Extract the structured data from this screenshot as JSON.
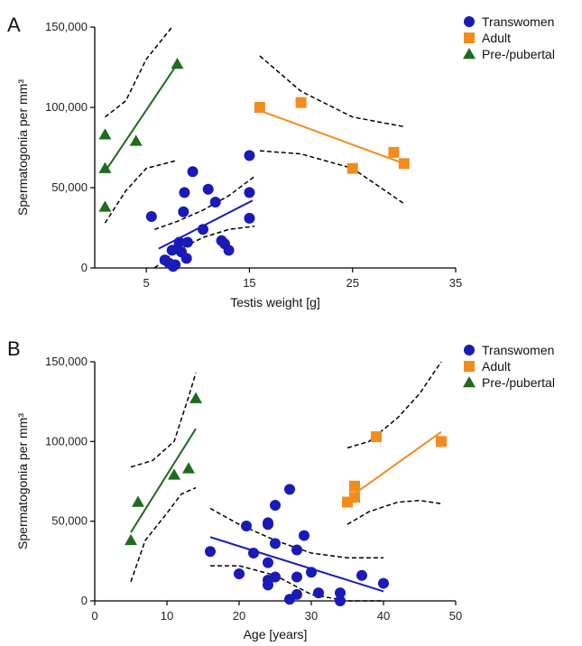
{
  "colors": {
    "transwomen": "#1a1ab8",
    "adult": "#f28c1e",
    "prepubertal": "#1f6b1f",
    "axis": "#000000",
    "ci": "#000000"
  },
  "chart_data": [
    {
      "type": "scatter",
      "panel_label": "A",
      "xlabel": "Testis weight [g]",
      "ylabel": "Spermatogonia per mm³",
      "xlim": [
        0,
        35
      ],
      "ylim": [
        0,
        150000
      ],
      "xticks": [
        5,
        15,
        25,
        35
      ],
      "yticks": [
        0,
        50000,
        100000,
        150000
      ],
      "ytick_labels": [
        "0",
        "50,000",
        "100,000",
        "150,000"
      ],
      "legend_position": "top-right",
      "series": [
        {
          "name": "Transwomen",
          "key": "transwomen",
          "marker": "circle",
          "points": [
            [
              5.5,
              32000
            ],
            [
              6.8,
              5000
            ],
            [
              7.2,
              3000
            ],
            [
              7.5,
              11000
            ],
            [
              7.6,
              1000
            ],
            [
              7.8,
              2000
            ],
            [
              8,
              12000
            ],
            [
              8.2,
              16000
            ],
            [
              8.4,
              10000
            ],
            [
              8.6,
              35000
            ],
            [
              8.7,
              47000
            ],
            [
              8.9,
              6000
            ],
            [
              9,
              16000
            ],
            [
              9.5,
              60000
            ],
            [
              10.5,
              24000
            ],
            [
              11,
              49000
            ],
            [
              11.7,
              41000
            ],
            [
              12.3,
              17000
            ],
            [
              12.6,
              15000
            ],
            [
              13,
              11000
            ],
            [
              15,
              70000
            ],
            [
              15,
              47000
            ],
            [
              15,
              31000
            ]
          ],
          "fit": [
            [
              6.2,
              12000
            ],
            [
              15.3,
              42000
            ]
          ],
          "ci_upper": [
            [
              5.8,
              24000
            ],
            [
              8,
              29000
            ],
            [
              10.5,
              36000
            ],
            [
              13,
              45000
            ],
            [
              15.5,
              57000
            ]
          ],
          "ci_lower": [
            [
              5.8,
              -2000
            ],
            [
              8,
              11000
            ],
            [
              10.5,
              19000
            ],
            [
              13,
              24000
            ],
            [
              15.5,
              26000
            ]
          ]
        },
        {
          "name": "Adult",
          "key": "adult",
          "marker": "square",
          "points": [
            [
              16,
              100000
            ],
            [
              20,
              103000
            ],
            [
              25,
              62000
            ],
            [
              29,
              72000
            ],
            [
              30,
              65000
            ]
          ],
          "fit": [
            [
              16,
              98000
            ],
            [
              30,
              65000
            ]
          ],
          "ci_upper": [
            [
              16,
              132000
            ],
            [
              20,
              110000
            ],
            [
              25,
              94000
            ],
            [
              30,
              88000
            ]
          ],
          "ci_lower": [
            [
              16,
              73000
            ],
            [
              20,
              71000
            ],
            [
              25,
              62000
            ],
            [
              30,
              40000
            ]
          ]
        },
        {
          "name": "Pre-/pubertal",
          "key": "prepubertal",
          "marker": "triangle",
          "points": [
            [
              1,
              83000
            ],
            [
              1,
              62000
            ],
            [
              1,
              38000
            ],
            [
              4,
              79000
            ],
            [
              8,
              127000
            ]
          ],
          "fit": [
            [
              1,
              60000
            ],
            [
              8,
              127000
            ]
          ],
          "ci_upper": [
            [
              1,
              94000
            ],
            [
              3,
              104000
            ],
            [
              5,
              130000
            ],
            [
              7.5,
              150000
            ]
          ],
          "ci_lower": [
            [
              1,
              28000
            ],
            [
              3,
              48000
            ],
            [
              5,
              62000
            ],
            [
              8,
              67000
            ]
          ]
        }
      ]
    },
    {
      "type": "scatter",
      "panel_label": "B",
      "xlabel": "Age [years]",
      "ylabel": "Spermatogonia per mm³",
      "xlim": [
        0,
        50
      ],
      "ylim": [
        0,
        150000
      ],
      "xticks": [
        0,
        10,
        20,
        30,
        40,
        50
      ],
      "yticks": [
        0,
        50000,
        100000,
        150000
      ],
      "ytick_labels": [
        "0",
        "50,000",
        "100,000",
        "150,000"
      ],
      "legend_position": "top-right",
      "series": [
        {
          "name": "Transwomen",
          "key": "transwomen",
          "marker": "circle",
          "points": [
            [
              16,
              31000
            ],
            [
              20,
              17000
            ],
            [
              21,
              47000
            ],
            [
              22,
              30000
            ],
            [
              24,
              24000
            ],
            [
              24,
              48000
            ],
            [
              24,
              49000
            ],
            [
              24,
              13000
            ],
            [
              24,
              10000
            ],
            [
              25,
              60000
            ],
            [
              25,
              36000
            ],
            [
              25,
              15000
            ],
            [
              27,
              1000
            ],
            [
              27,
              70000
            ],
            [
              28,
              32000
            ],
            [
              28,
              15000
            ],
            [
              28,
              4000
            ],
            [
              29,
              41000
            ],
            [
              30,
              18000
            ],
            [
              31,
              5000
            ],
            [
              34,
              5000
            ],
            [
              34,
              0
            ],
            [
              37,
              16000
            ],
            [
              40,
              11000
            ]
          ],
          "fit": [
            [
              16,
              40000
            ],
            [
              40,
              6000
            ]
          ],
          "ci_upper": [
            [
              16,
              58000
            ],
            [
              20,
              48000
            ],
            [
              25,
              38000
            ],
            [
              30,
              30000
            ],
            [
              35,
              27000
            ],
            [
              40,
              27000
            ]
          ],
          "ci_lower": [
            [
              16,
              22000
            ],
            [
              20,
              22000
            ],
            [
              25,
              16000
            ],
            [
              30,
              4000
            ],
            [
              35,
              -8000
            ],
            [
              40,
              -15000
            ]
          ]
        },
        {
          "name": "Adult",
          "key": "adult",
          "marker": "square",
          "points": [
            [
              35,
              62000
            ],
            [
              36,
              65000
            ],
            [
              36,
              72000
            ],
            [
              39,
              103000
            ],
            [
              48,
              100000
            ]
          ],
          "fit": [
            [
              35,
              64000
            ],
            [
              48,
              106000
            ]
          ],
          "ci_upper": [
            [
              35,
              96000
            ],
            [
              38,
              100000
            ],
            [
              42,
              115000
            ],
            [
              45,
              130000
            ],
            [
              48,
              150000
            ]
          ],
          "ci_lower": [
            [
              35,
              48000
            ],
            [
              38,
              56000
            ],
            [
              42,
              62000
            ],
            [
              45,
              63000
            ],
            [
              48,
              61000
            ]
          ]
        },
        {
          "name": "Pre-/pubertal",
          "key": "prepubertal",
          "marker": "triangle",
          "points": [
            [
              5,
              38000
            ],
            [
              6,
              62000
            ],
            [
              11,
              79000
            ],
            [
              13,
              83000
            ],
            [
              14,
              127000
            ]
          ],
          "fit": [
            [
              5,
              43000
            ],
            [
              14,
              108000
            ]
          ],
          "ci_upper": [
            [
              5,
              84000
            ],
            [
              8,
              88000
            ],
            [
              11,
              100000
            ],
            [
              13,
              128000
            ],
            [
              14,
              143000
            ]
          ],
          "ci_lower": [
            [
              5,
              12000
            ],
            [
              7,
              38000
            ],
            [
              10,
              55000
            ],
            [
              12,
              67000
            ],
            [
              14,
              71000
            ]
          ]
        }
      ]
    }
  ]
}
